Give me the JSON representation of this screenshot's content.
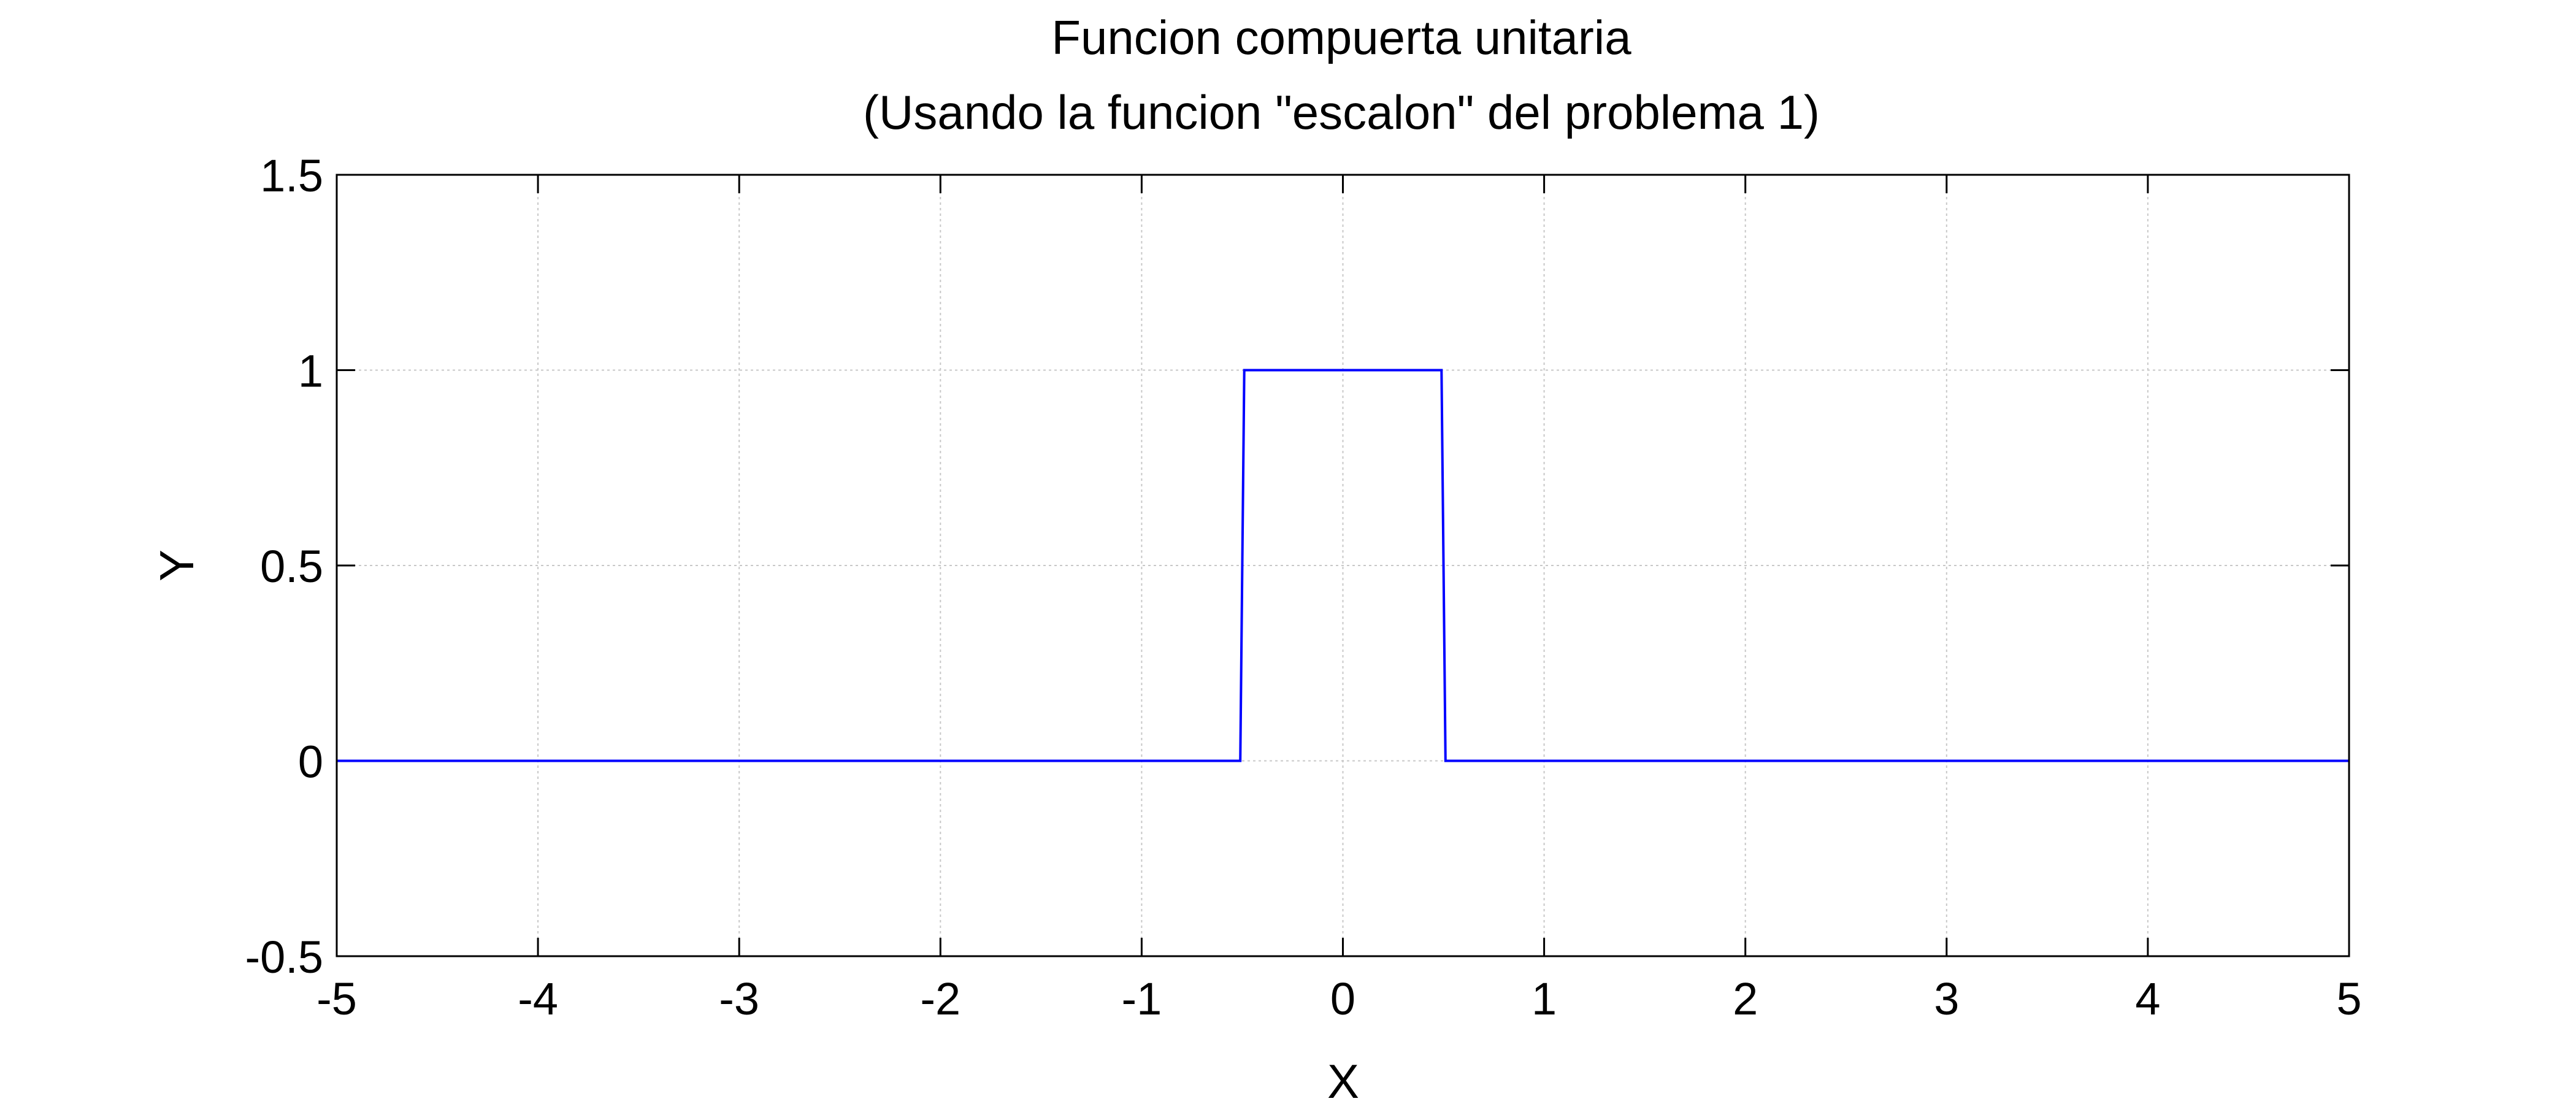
{
  "chart_data": {
    "type": "line",
    "title": "Funcion compuerta unitaria",
    "subtitle": "(Usando la funcion \"escalon\" del problema 1)",
    "xlabel": "X",
    "ylabel": "Y",
    "xlim": [
      -5,
      5
    ],
    "ylim": [
      -0.5,
      1.5
    ],
    "grid": true,
    "x_ticks": [
      -5,
      -4,
      -3,
      -2,
      -1,
      0,
      1,
      2,
      3,
      4,
      5
    ],
    "y_ticks": [
      -0.5,
      0,
      0.5,
      1,
      1.5
    ],
    "x_tick_labels": [
      "-5",
      "-4",
      "-3",
      "-2",
      "-1",
      "0",
      "1",
      "2",
      "3",
      "4",
      "5"
    ],
    "y_tick_labels": [
      "-0.5",
      "0",
      "0.5",
      "1",
      "1.5"
    ],
    "series": [
      {
        "color": "#0000ff",
        "x": [
          -5,
          -0.51,
          -0.49,
          0.49,
          0.51,
          5
        ],
        "y": [
          0,
          0,
          1,
          1,
          0,
          0
        ]
      }
    ]
  }
}
